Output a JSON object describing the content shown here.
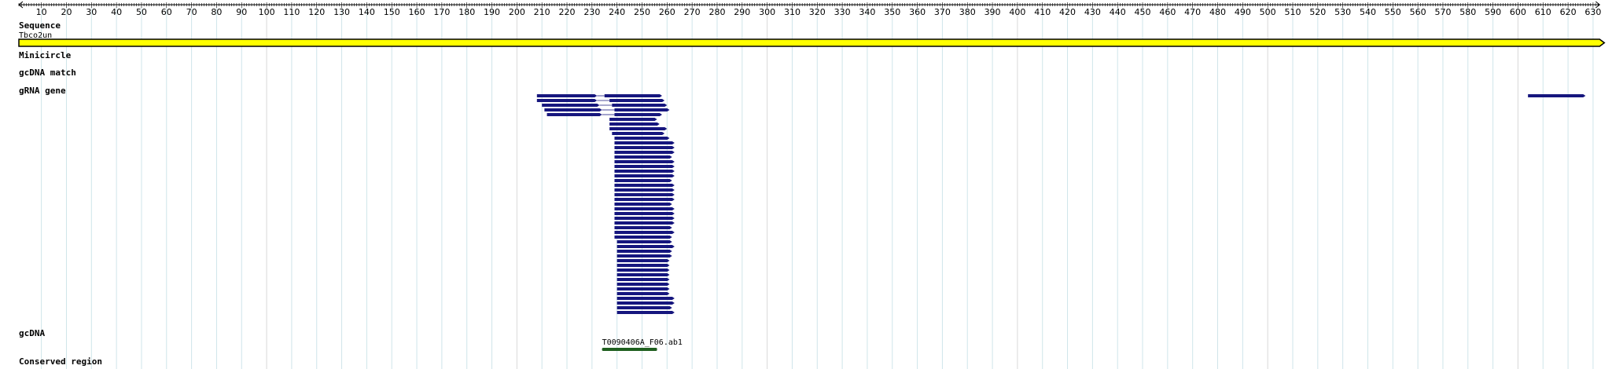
{
  "ruler": {
    "start": 1,
    "end": 632,
    "major_step": 10
  },
  "tracks": {
    "sequence": {
      "label": "Sequence",
      "name": "Tbco2un",
      "start": 1,
      "end": 632
    },
    "minicircle": {
      "label": "Minicircle"
    },
    "gcdna_match": {
      "label": "gcDNA match"
    },
    "grna_gene": {
      "label": "gRNA gene",
      "features": [
        {
          "s": 208,
          "e": 232,
          "s2": 235,
          "e2": 258
        },
        {
          "s": 208,
          "e": 232,
          "s2": 237,
          "e2": 259
        },
        {
          "s": 210,
          "e": 233,
          "s2": 238,
          "e2": 260
        },
        {
          "s": 211,
          "e": 234,
          "s2": 239,
          "e2": 261
        },
        {
          "s": 212,
          "e": 234,
          "s2": 239,
          "e2": 258
        },
        {
          "s": 237,
          "e2": 256
        },
        {
          "s": 237,
          "e2": 257
        },
        {
          "s": 237,
          "e2": 260
        },
        {
          "s": 238,
          "e2": 259
        },
        {
          "s": 239,
          "e2": 261
        },
        {
          "s": 239,
          "e2": 263
        },
        {
          "s": 239,
          "e2": 263
        },
        {
          "s": 239,
          "e2": 263
        },
        {
          "s": 239,
          "e2": 262
        },
        {
          "s": 239,
          "e2": 263
        },
        {
          "s": 239,
          "e2": 263
        },
        {
          "s": 239,
          "e2": 263
        },
        {
          "s": 239,
          "e2": 263
        },
        {
          "s": 239,
          "e2": 262
        },
        {
          "s": 239,
          "e2": 263
        },
        {
          "s": 239,
          "e2": 263
        },
        {
          "s": 239,
          "e2": 263
        },
        {
          "s": 239,
          "e2": 263
        },
        {
          "s": 239,
          "e2": 262
        },
        {
          "s": 239,
          "e2": 263
        },
        {
          "s": 239,
          "e2": 263
        },
        {
          "s": 239,
          "e2": 263
        },
        {
          "s": 239,
          "e2": 263
        },
        {
          "s": 239,
          "e2": 262
        },
        {
          "s": 239,
          "e2": 263
        },
        {
          "s": 239,
          "e2": 262
        },
        {
          "s": 240,
          "e2": 262
        },
        {
          "s": 240,
          "e2": 263
        },
        {
          "s": 240,
          "e2": 262
        },
        {
          "s": 240,
          "e2": 262
        },
        {
          "s": 240,
          "e2": 261
        },
        {
          "s": 240,
          "e2": 261
        },
        {
          "s": 240,
          "e2": 261
        },
        {
          "s": 240,
          "e2": 261
        },
        {
          "s": 240,
          "e2": 261
        },
        {
          "s": 240,
          "e2": 261
        },
        {
          "s": 240,
          "e2": 261
        },
        {
          "s": 240,
          "e2": 261
        },
        {
          "s": 240,
          "e2": 263
        },
        {
          "s": 240,
          "e2": 263
        },
        {
          "s": 240,
          "e2": 262
        },
        {
          "s": 240,
          "e2": 263
        },
        {
          "s": 604,
          "e2": 627
        }
      ]
    },
    "gcdna": {
      "label": "gcDNA",
      "features": [
        {
          "name": "T0090406A_F06.ab1",
          "s": 234,
          "e": 256
        }
      ]
    },
    "conserved_region": {
      "label": "Conserved region"
    }
  },
  "colors": {
    "ruler": "#000000",
    "grid": "#cfe5ea",
    "grid_major": "#d8d8d8",
    "sequence_fill": "#ffff00",
    "sequence_stroke": "#000000",
    "grna": "#16167e",
    "gcdna": "#1f5f1f"
  }
}
